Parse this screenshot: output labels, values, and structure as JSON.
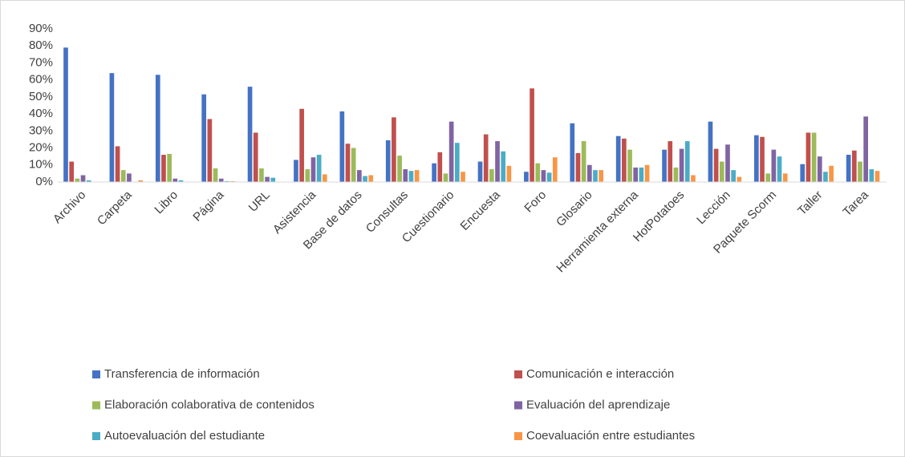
{
  "chart_data": {
    "type": "bar",
    "categories": [
      "Archivo",
      "Carpeta",
      "Libro",
      "Página",
      "URL",
      "Asistencia",
      "Base de datos",
      "Consultas",
      "Cuestionario",
      "Encuesta",
      "Foro",
      "Glosario",
      "Herramienta externa",
      "HotPotatoes",
      "Lección",
      "Paquete Scorm",
      "Taller",
      "Tarea"
    ],
    "series": [
      {
        "name": "Transferencia de información",
        "color": "#4472c4",
        "values": [
          79,
          64,
          63,
          51.5,
          56,
          13,
          41.5,
          24.5,
          11,
          12,
          6,
          34.5,
          27,
          19,
          35.5,
          27.5,
          10.5,
          16
        ]
      },
      {
        "name": "Comunicación e interacción",
        "color": "#c0504d",
        "values": [
          12,
          21,
          16,
          37,
          29,
          43,
          22.5,
          38,
          17.5,
          28,
          55,
          17,
          25.5,
          24,
          19.5,
          26.5,
          29,
          18.5
        ]
      },
      {
        "name": "Elaboración colaborativa de contenidos",
        "color": "#9bbb59",
        "values": [
          2,
          7,
          16.5,
          8,
          8,
          7.5,
          20,
          15.5,
          5,
          7.5,
          11,
          24,
          19,
          8.5,
          12,
          5,
          29,
          12
        ]
      },
      {
        "name": "Evaluación del aprendizaje",
        "color": "#8064a2",
        "values": [
          4,
          5,
          2,
          2,
          3,
          14.5,
          7,
          7.5,
          35.5,
          24,
          7,
          10,
          8.5,
          19.5,
          22,
          19,
          15,
          38.5
        ]
      },
      {
        "name": "Autoevaluación del estudiante",
        "color": "#4bacc6",
        "values": [
          1,
          0,
          1,
          0.5,
          2.5,
          16,
          3.5,
          6.5,
          23,
          18,
          5.5,
          7,
          8.5,
          24,
          7,
          15,
          6,
          7.5
        ]
      },
      {
        "name": "Coevaluación entre estudiantes",
        "color": "#f79646",
        "values": [
          0,
          1,
          0,
          0.5,
          0,
          4.5,
          4,
          7,
          6,
          9.5,
          14.5,
          7,
          10,
          4,
          3,
          5,
          9.5,
          6.5
        ]
      }
    ],
    "ylim": [
      0,
      90
    ],
    "yticks": [
      {
        "value": 0,
        "label": "0%"
      },
      {
        "value": 10,
        "label": "10%"
      },
      {
        "value": 20,
        "label": "20%"
      },
      {
        "value": 30,
        "label": "30%"
      },
      {
        "value": 40,
        "label": "40%"
      },
      {
        "value": 50,
        "label": "50%"
      },
      {
        "value": 60,
        "label": "60%"
      },
      {
        "value": 70,
        "label": "70%"
      },
      {
        "value": 80,
        "label": "80%"
      },
      {
        "value": 90,
        "label": "90%"
      }
    ],
    "grid": false,
    "legend": "bottom"
  }
}
